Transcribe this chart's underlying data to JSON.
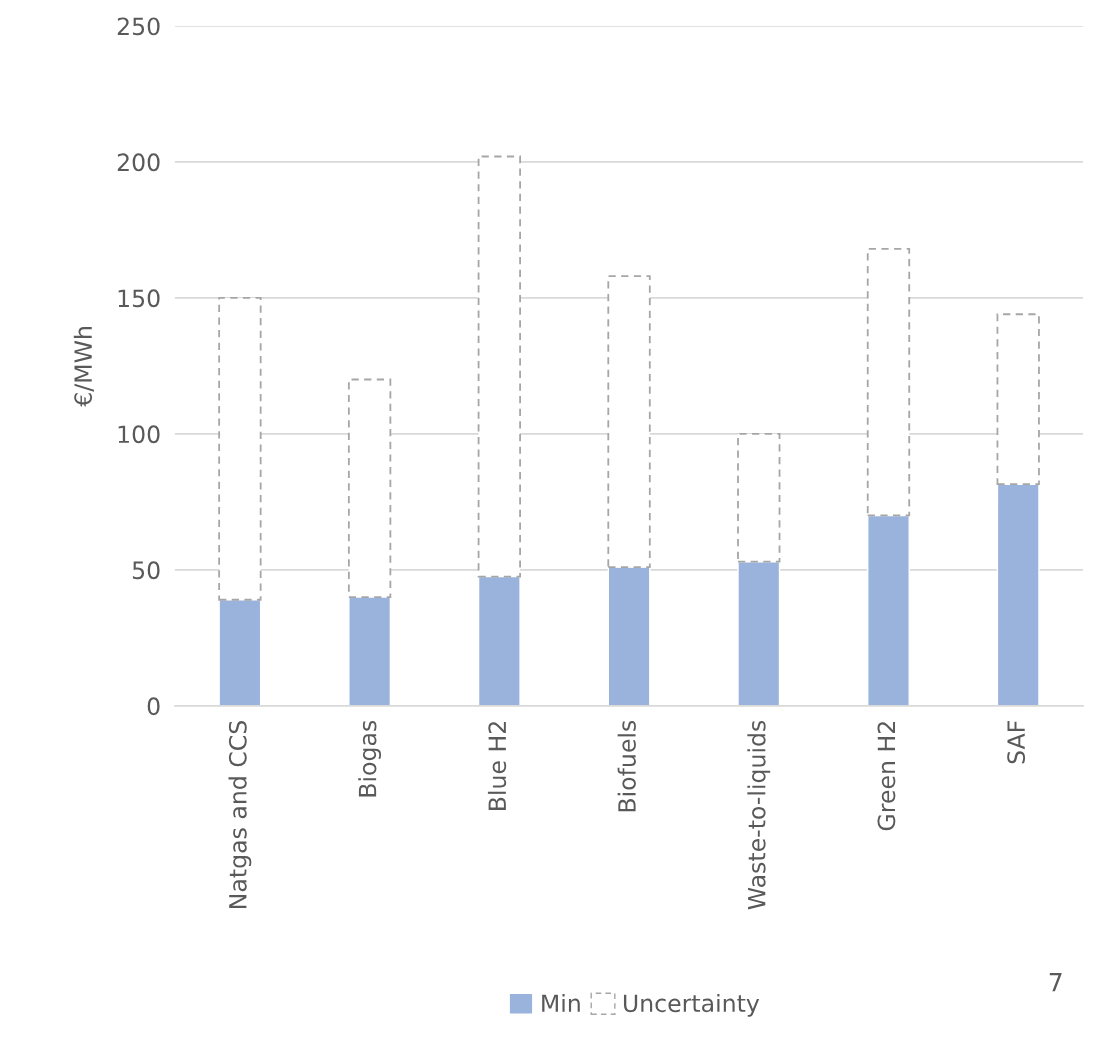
{
  "chart_data": {
    "type": "bar",
    "stacked": true,
    "ylabel": "€/MWh",
    "categories": [
      "Natgas and CCS",
      "Biogas",
      "Blue H2",
      "Biofuels",
      "Waste-to-liquids",
      "Green H2",
      "SAF"
    ],
    "series": [
      {
        "name": "Min",
        "color": "#9ab3dc",
        "values": [
          39,
          40,
          47.5,
          51,
          53,
          70,
          81.5
        ]
      },
      {
        "name": "Uncertainty",
        "color": "#ffffff",
        "line_style": "dashed",
        "values": [
          111,
          80,
          154.5,
          107,
          47,
          98,
          62.5
        ]
      }
    ],
    "ylim": [
      0,
      250
    ],
    "yticks": [
      0,
      50,
      100,
      150,
      200,
      250
    ],
    "grid": "y",
    "legend": "bottom",
    "annotations": [
      "7"
    ]
  }
}
